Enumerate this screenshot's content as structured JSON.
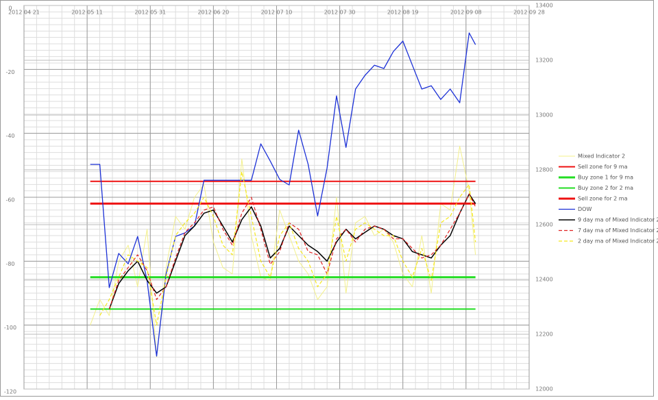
{
  "chart_data": {
    "type": "line",
    "x": [
      "2012 05 12",
      "2012 05 15",
      "2012 05 18",
      "2012 05 21",
      "2012 05 24",
      "2012 05 27",
      "2012 05 30",
      "2012 06 02",
      "2012 06 05",
      "2012 06 08",
      "2012 06 11",
      "2012 06 14",
      "2012 06 17",
      "2012 06 20",
      "2012 06 23",
      "2012 06 26",
      "2012 06 29",
      "2012 07 02",
      "2012 07 05",
      "2012 07 08",
      "2012 07 11",
      "2012 07 14",
      "2012 07 17",
      "2012 07 20",
      "2012 07 23",
      "2012 07 26",
      "2012 07 29",
      "2012 08 01",
      "2012 08 04",
      "2012 08 07",
      "2012 08 10",
      "2012 08 13",
      "2012 08 16",
      "2012 08 19",
      "2012 08 22",
      "2012 08 25",
      "2012 08 28",
      "2012 08 31",
      "2012 09 03",
      "2012 09 06",
      "2012 09 09",
      "2012 09 11"
    ],
    "xlim": [
      "2012 04 21",
      "2012 09 28"
    ],
    "xticks": [
      "2012 04 21",
      "2012 05 11",
      "2012 05 31",
      "2012 06 20",
      "2012 07 10",
      "2012 07 30",
      "2012 08 19",
      "2012 09 08",
      "2012 09 28"
    ],
    "ylim": [
      -120,
      0
    ],
    "yticks": [
      0,
      -20,
      -40,
      -60,
      -80,
      -100,
      -120
    ],
    "y2lim": [
      12000,
      13400
    ],
    "y2ticks": [
      13400,
      13200,
      13000,
      12800,
      12600,
      12400,
      12200,
      12000
    ],
    "grid": true,
    "legend": "right",
    "series": [
      {
        "name": "Mixed Indicator 2",
        "color": "#f3f08a",
        "width": 1,
        "values": [
          -100,
          -92,
          -97,
          -80,
          -75,
          -88,
          -70,
          -110,
          -82,
          -66,
          -70,
          -60,
          -56,
          -74,
          -82,
          -84,
          -48,
          -72,
          -85,
          -86,
          -64,
          -72,
          -80,
          -84,
          -92,
          -88,
          -60,
          -90,
          -68,
          -66,
          -72,
          -70,
          -74,
          -84,
          -88,
          -72,
          -90,
          -62,
          -64,
          -44,
          -58,
          -78
        ]
      },
      {
        "name": "Sell zone for 9 ma",
        "color": "#ee1111",
        "width": 2,
        "x": [
          "2012 05 12",
          "2012 09 11"
        ],
        "values": [
          -55,
          -55
        ]
      },
      {
        "name": "Buy zone 1 for 9 ma",
        "color": "#22dd22",
        "width": 3,
        "x": [
          "2012 05 12",
          "2012 09 11"
        ],
        "values": [
          -85,
          -85
        ]
      },
      {
        "name": "Buy zone 2 for 2 ma",
        "color": "#22dd22",
        "width": 2,
        "x": [
          "2012 05 12",
          "2012 09 11"
        ],
        "values": [
          -95,
          -95
        ]
      },
      {
        "name": "Sell zone for 2 ma",
        "color": "#ee1111",
        "width": 3,
        "x": [
          "2012 05 12",
          "2012 09 11"
        ],
        "values": [
          -62,
          -62
        ]
      },
      {
        "name": "DOW",
        "color": "#1a2fd6",
        "width": 1.3,
        "axis": "y2",
        "values": [
          12820,
          12820,
          12370,
          12495,
          12457,
          12557,
          12395,
          12120,
          12420,
          12557,
          12570,
          12595,
          12762,
          12762,
          12762,
          12762,
          12762,
          12762,
          12895,
          12832,
          12765,
          12745,
          12945,
          12820,
          12632,
          12807,
          13070,
          12882,
          13095,
          13145,
          13182,
          13170,
          13232,
          13270,
          13182,
          13095,
          13107,
          13057,
          13095,
          13045,
          13300,
          13257
        ]
      },
      {
        "name": "9 day ma of Mixed Indicator 2",
        "color": "#000000",
        "width": 1.5,
        "values": [
          null,
          null,
          -95,
          -87,
          -83,
          -80,
          -86,
          -90,
          -88,
          -80,
          -72,
          -69,
          -65,
          -64,
          -69,
          -74,
          -67,
          -63,
          -69,
          -79,
          -76,
          -69,
          -72,
          -75,
          -77,
          -80,
          -74,
          -70,
          -73,
          -71,
          -69,
          -70,
          -72,
          -73,
          -77,
          -78,
          -79,
          -75,
          -72,
          -65,
          -59,
          -62
        ]
      },
      {
        "name": "7 day ma of Mixed Indicator 2",
        "color": "#e02020",
        "width": 1.2,
        "style": "dashed",
        "values": [
          null,
          null,
          -95,
          -86,
          -82,
          -78,
          -83,
          -92,
          -88,
          -79,
          -71,
          -68,
          -64,
          -63,
          -70,
          -75,
          -65,
          -60,
          -70,
          -81,
          -77,
          -68,
          -70,
          -77,
          -78,
          -84,
          -73,
          -70,
          -74,
          -70,
          -69,
          -70,
          -73,
          -73,
          -76,
          -79,
          -78,
          -75,
          -70,
          -65,
          -59,
          -63
        ]
      },
      {
        "name": "2 day ma of Mixed Indicator 2",
        "color": "#f5e81a",
        "width": 1.2,
        "style": "dashed",
        "values": [
          null,
          -97,
          -92,
          -85,
          -78,
          -80,
          -82,
          -100,
          -85,
          -72,
          -68,
          -65,
          -60,
          -66,
          -75,
          -78,
          -52,
          -66,
          -80,
          -85,
          -72,
          -68,
          -76,
          -80,
          -88,
          -84,
          -66,
          -80,
          -70,
          -68,
          -70,
          -72,
          -72,
          -80,
          -85,
          -76,
          -86,
          -68,
          -66,
          -60,
          -56,
          -74
        ]
      }
    ]
  }
}
